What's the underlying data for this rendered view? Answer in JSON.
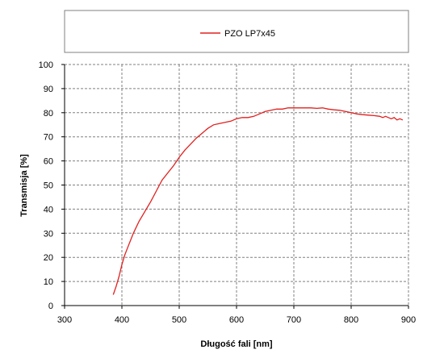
{
  "chart_data": {
    "type": "line",
    "title": "",
    "xlabel": "Długość fali [nm]",
    "ylabel": "Transmisja [%]",
    "xlim": [
      300,
      900
    ],
    "ylim": [
      0,
      100
    ],
    "x_ticks": [
      300,
      400,
      500,
      600,
      700,
      800,
      900
    ],
    "y_ticks": [
      0,
      10,
      20,
      30,
      40,
      50,
      60,
      70,
      80,
      90,
      100
    ],
    "grid": true,
    "legend_position": "top",
    "colors": {
      "series": "#e0201e",
      "grid": "#808080",
      "axis": "#000000"
    },
    "series": [
      {
        "name": "PZO LP7x45",
        "x": [
          385,
          390,
          395,
          400,
          405,
          410,
          420,
          430,
          440,
          450,
          460,
          470,
          480,
          490,
          500,
          510,
          520,
          530,
          540,
          550,
          560,
          570,
          580,
          590,
          600,
          610,
          620,
          630,
          640,
          650,
          660,
          670,
          680,
          690,
          700,
          710,
          720,
          730,
          740,
          750,
          760,
          770,
          780,
          790,
          800,
          810,
          820,
          830,
          840,
          850,
          855,
          860,
          865,
          870,
          875,
          880,
          885,
          890
        ],
        "y": [
          4.5,
          8,
          12,
          17,
          21,
          24,
          30,
          35,
          39,
          43,
          47.5,
          52,
          55,
          58,
          61.5,
          64.5,
          67,
          69.5,
          71.5,
          73.5,
          75,
          75.5,
          76,
          76.5,
          77.5,
          78,
          78,
          78.5,
          79.5,
          80.5,
          81,
          81.5,
          81.5,
          82,
          82,
          82,
          82,
          82,
          81.8,
          82,
          81.5,
          81.2,
          81,
          80.5,
          80,
          79.5,
          79.2,
          79,
          78.8,
          78.5,
          78,
          78.5,
          78,
          77.5,
          78,
          77,
          77.5,
          77
        ]
      }
    ]
  }
}
